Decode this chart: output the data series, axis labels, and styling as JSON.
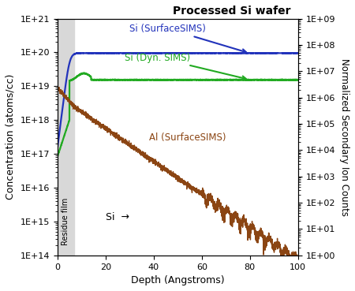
{
  "title": "Processed Si wafer",
  "xlabel": "Depth (Angstroms)",
  "ylabel_left": "Concentration (atoms/cc)",
  "ylabel_right": "Normalized Secondary Ion Counts",
  "xlim": [
    0,
    100
  ],
  "ylim_left": [
    100000000000000.0,
    1e+21
  ],
  "ylim_right": [
    1.0,
    1000000000.0
  ],
  "residue_x_end": 7,
  "residue_film_label": "Residue film",
  "si_label": "Si",
  "colors": {
    "si_surface": "#2233bb",
    "si_dyn": "#22aa22",
    "al_surface": "#8B4513"
  },
  "legend": {
    "si_surface": "Si (SurfaceSIMS)",
    "si_dyn": "Si (Dyn. SIMS)",
    "al_surface": "Al (SurfaceSIMS)"
  },
  "background_color": "#ffffff",
  "residue_color": "#d8d8d8",
  "xticks": [
    0,
    20,
    40,
    60,
    80,
    100
  ]
}
